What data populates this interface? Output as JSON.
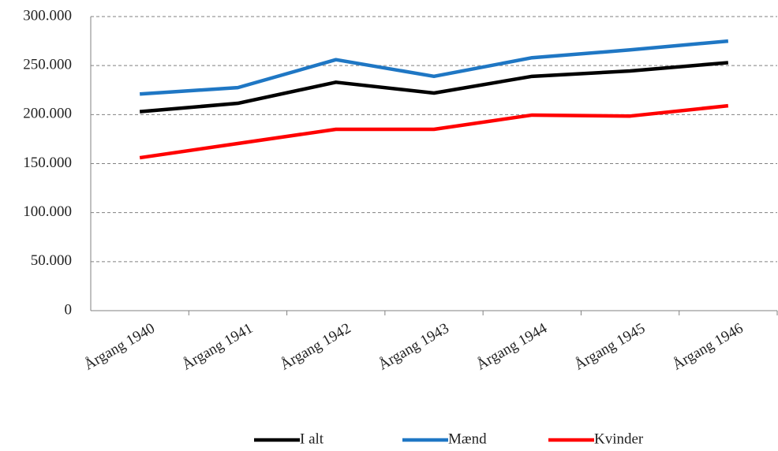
{
  "chart_data": {
    "type": "line",
    "categories": [
      "Årgang 1940",
      "Årgang 1941",
      "Årgang 1942",
      "Årgang 1943",
      "Årgang 1944",
      "Årgang 1945",
      "Årgang 1946"
    ],
    "series": [
      {
        "name": "I alt",
        "color": "#000000",
        "values": [
          203000,
          211500,
          233000,
          222000,
          239000,
          244500,
          253000
        ]
      },
      {
        "name": "Mænd",
        "color": "#1f77c4",
        "values": [
          221000,
          227500,
          256000,
          239000,
          258000,
          266000,
          275000
        ]
      },
      {
        "name": "Kvinder",
        "color": "#ff0000",
        "values": [
          156000,
          170500,
          185000,
          185000,
          199500,
          198500,
          209000
        ]
      }
    ],
    "ylim": [
      0,
      300000
    ],
    "yticks": [
      0,
      {
        "value": 50000,
        "label": "50.000"
      },
      {
        "value": 100000,
        "label": "100.000"
      },
      {
        "value": 150000,
        "label": "150.000"
      },
      {
        "value": 200000,
        "label": "200.000"
      },
      {
        "value": 250000,
        "label": "250.000"
      },
      {
        "value": 300000,
        "label": "300.000"
      }
    ],
    "grid": true,
    "legend": "bottom"
  }
}
